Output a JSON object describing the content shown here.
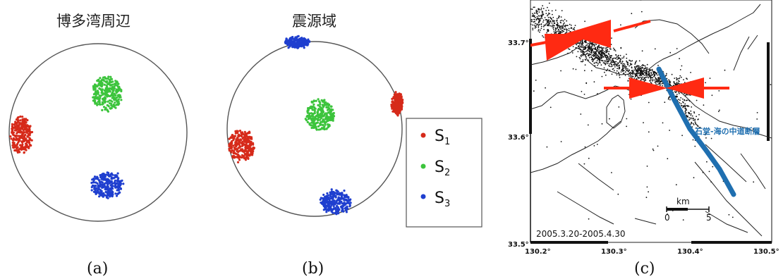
{
  "panels": {
    "a": {
      "title": "博多湾周辺",
      "caption": "(a)",
      "clusters": [
        {
          "stress": "S1",
          "color": "#d62a1a",
          "cx": 30,
          "cy": 192,
          "rx": 15,
          "ry": 26
        },
        {
          "stress": "S2",
          "color": "#3cc43c",
          "cx": 152,
          "cy": 133,
          "rx": 20,
          "ry": 24
        },
        {
          "stress": "S3",
          "color": "#1f3fcf",
          "cx": 152,
          "cy": 262,
          "rx": 23,
          "ry": 18
        }
      ]
    },
    "b": {
      "title": "震源域",
      "caption": "(b)",
      "clusters": [
        {
          "stress": "S1",
          "color": "#d62a1a",
          "cx": 342,
          "cy": 206,
          "rx": 18,
          "ry": 22
        },
        {
          "stress": "S1",
          "color": "#d62a1a",
          "cx": 563,
          "cy": 147,
          "rx": 7,
          "ry": 14
        },
        {
          "stress": "S2",
          "color": "#3cc43c",
          "cx": 454,
          "cy": 163,
          "rx": 20,
          "ry": 22
        },
        {
          "stress": "S3",
          "color": "#1f3fcf",
          "cx": 421,
          "cy": 60,
          "rx": 17,
          "ry": 7
        },
        {
          "stress": "S3",
          "color": "#1f3fcf",
          "cx": 476,
          "cy": 287,
          "rx": 21,
          "ry": 16
        }
      ]
    },
    "c": {
      "caption": "(c)",
      "date_range": "2005.3.20-2005.4.30",
      "fault_label": "石堂-海の中道断層",
      "lat_labels": [
        "33.7°",
        "33.6°",
        "33.5°"
      ],
      "lon_labels": [
        "130.2°",
        "130.3°",
        "130.4°",
        "130.5°"
      ],
      "scale_unit": "km",
      "scale_ticks": [
        "0",
        "5"
      ]
    }
  },
  "legend": {
    "items": [
      {
        "label": "S",
        "sub": "1",
        "color": "#d62a1a"
      },
      {
        "label": "S",
        "sub": "2",
        "color": "#3cc43c"
      },
      {
        "label": "S",
        "sub": "3",
        "color": "#1f3fcf"
      }
    ]
  },
  "colors": {
    "compression_arrow": "#ff2a12",
    "fault": "#1f6fb0",
    "circle": "#555555"
  }
}
